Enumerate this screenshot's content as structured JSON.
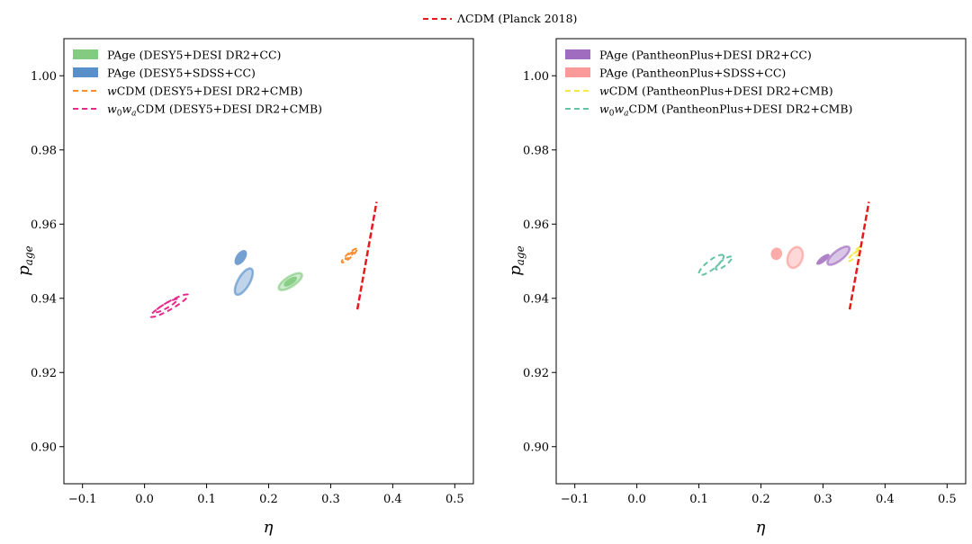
{
  "global_legend": {
    "label": "ΛCDM (Planck 2018)",
    "color": "#e41a1c",
    "style": "dashed"
  },
  "chart_data": [
    {
      "type": "contour",
      "xlabel": "η",
      "ylabel_main": "p",
      "ylabel_sub": "age",
      "xlim": [
        -0.13,
        0.53
      ],
      "ylim": [
        0.89,
        1.01
      ],
      "xticks": [
        -0.1,
        0.0,
        0.1,
        0.2,
        0.3,
        0.4,
        0.5
      ],
      "xtick_labels": [
        "−0.1",
        "0.0",
        "0.1",
        "0.2",
        "0.3",
        "0.4",
        "0.5"
      ],
      "yticks": [
        0.9,
        0.92,
        0.94,
        0.96,
        0.98,
        1.0
      ],
      "ytick_labels": [
        "0.90",
        "0.92",
        "0.94",
        "0.96",
        "0.98",
        "1.00"
      ],
      "legend_position": "upper-left",
      "series": [
        {
          "name": "PAge (DESY5+SDSS+CC)",
          "kind": "filled",
          "color": "#3d7cbf",
          "contours": [
            {
              "level": "outer",
              "center": [
                0.16,
                0.9445
              ],
              "a": 0.165,
              "b": 0.065,
              "angle_deg": 60
            },
            {
              "level": "inner",
              "center": [
                0.155,
                0.951
              ],
              "a": 0.095,
              "b": 0.052,
              "angle_deg": 55
            }
          ]
        },
        {
          "name": "PAge (DESY5+DESI DR2+CC)",
          "kind": "filled",
          "color": "#6cc26a",
          "contours": [
            {
              "level": "outer",
              "center": [
                0.235,
                0.9445
              ],
              "a": 0.15,
              "b": 0.055,
              "angle_deg": 33
            },
            {
              "level": "inner",
              "center": [
                0.235,
                0.9445
              ],
              "a": 0.085,
              "b": 0.035,
              "angle_deg": 33
            }
          ]
        },
        {
          "name": "wCDM (DESY5+DESI DR2+CMB)",
          "kind": "dashed",
          "color": "#ff8c2a",
          "contours": [
            {
              "level": "outer",
              "center": [
                0.33,
                0.9515
              ],
              "a": 0.11,
              "b": 0.025,
              "angle_deg": 42
            },
            {
              "level": "inner",
              "center": [
                0.33,
                0.9515
              ],
              "a": 0.055,
              "b": 0.013,
              "angle_deg": 42
            }
          ]
        },
        {
          "name": "w0waCDM (DESY5+DESI DR2+CMB)",
          "kind": "dashed",
          "color": "#e7298a",
          "contours": [
            {
              "level": "outer",
              "center": [
                0.04,
                0.938
              ],
              "a": 0.24,
              "b": 0.043,
              "angle_deg": 30
            },
            {
              "level": "inner",
              "center": [
                0.035,
                0.938
              ],
              "a": 0.14,
              "b": 0.026,
              "angle_deg": 30
            }
          ]
        },
        {
          "name": "ΛCDM (Planck 2018)",
          "kind": "segment",
          "color": "#e41a1c",
          "points": [
            [
              0.343,
              0.937
            ],
            [
              0.374,
              0.966
            ]
          ]
        }
      ],
      "legend_entries": [
        {
          "key": "desi_cc",
          "label": "PAge (DESY5+DESI DR2+CC)",
          "color": "#6cc26a",
          "kind": "patch"
        },
        {
          "key": "sdss_cc",
          "label": "PAge (DESY5+SDSS+CC)",
          "color": "#3d7cbf",
          "kind": "patch"
        },
        {
          "key": "wcdm",
          "prefix": "w",
          "label": "CDM (DESY5+DESI DR2+CMB)",
          "color": "#ff8c2a",
          "kind": "dash"
        },
        {
          "key": "w0wa",
          "prefix": "w0wa",
          "label": "CDM (DESY5+DESI DR2+CMB)",
          "color": "#e7298a",
          "kind": "dash"
        }
      ]
    },
    {
      "type": "contour",
      "xlabel": "η",
      "ylabel_main": "p",
      "ylabel_sub": "age",
      "xlim": [
        -0.13,
        0.53
      ],
      "ylim": [
        0.89,
        1.01
      ],
      "xticks": [
        -0.1,
        0.0,
        0.1,
        0.2,
        0.3,
        0.4,
        0.5
      ],
      "xtick_labels": [
        "−0.1",
        "0.0",
        "0.1",
        "0.2",
        "0.3",
        "0.4",
        "0.5"
      ],
      "yticks": [
        0.9,
        0.92,
        0.94,
        0.96,
        0.98,
        1.0
      ],
      "ytick_labels": [
        "0.90",
        "0.92",
        "0.94",
        "0.96",
        "0.98",
        "1.00"
      ],
      "legend_position": "upper-left",
      "series": [
        {
          "name": "PAge (PantheonPlus+SDSS+CC)",
          "kind": "filled",
          "color": "#f98a87",
          "contours": [
            {
              "level": "outer",
              "center": [
                0.255,
                0.951
              ],
              "a": 0.12,
              "b": 0.08,
              "angle_deg": 70
            },
            {
              "level": "inner",
              "center": [
                0.225,
                0.952
              ],
              "a": 0.069,
              "b": 0.062,
              "angle_deg": 75
            }
          ]
        },
        {
          "name": "PAge (PantheonPlus+DESI DR2+CC)",
          "kind": "filled",
          "color": "#8e52b4",
          "contours": [
            {
              "level": "outer",
              "center": [
                0.325,
                0.9515
              ],
              "a": 0.15,
              "b": 0.055,
              "angle_deg": 38
            },
            {
              "level": "inner",
              "center": [
                0.3,
                0.9505
              ],
              "a": 0.09,
              "b": 0.032,
              "angle_deg": 38
            }
          ]
        },
        {
          "name": "wCDM (PantheonPlus+DESI DR2+CMB)",
          "kind": "dashed",
          "color": "#f5e94a",
          "contours": [
            {
              "level": "outer",
              "center": [
                0.35,
                0.9515
              ],
              "a": 0.09,
              "b": 0.022,
              "angle_deg": 42
            },
            {
              "level": "inner",
              "center": [
                0.355,
                0.953
              ],
              "a": 0.05,
              "b": 0.011,
              "angle_deg": 42
            }
          ]
        },
        {
          "name": "w0waCDM (PantheonPlus+DESI DR2+CMB)",
          "kind": "dashed",
          "color": "#66c2a5",
          "contours": [
            {
              "level": "outer",
              "center": [
                0.12,
                0.949
              ],
              "a": 0.17,
              "b": 0.05,
              "angle_deg": 38
            },
            {
              "level": "inner",
              "center": [
                0.14,
                0.9495
              ],
              "a": 0.11,
              "b": 0.032,
              "angle_deg": 38
            }
          ]
        },
        {
          "name": "ΛCDM (Planck 2018)",
          "kind": "segment",
          "color": "#e41a1c",
          "points": [
            [
              0.343,
              0.937
            ],
            [
              0.374,
              0.966
            ]
          ]
        }
      ],
      "legend_entries": [
        {
          "key": "pp_desi_cc",
          "label": "PAge (PantheonPlus+DESI DR2+CC)",
          "color": "#8e52b4",
          "kind": "patch"
        },
        {
          "key": "pp_sdss_cc",
          "label": "PAge (PantheonPlus+SDSS+CC)",
          "color": "#f98a87",
          "kind": "patch"
        },
        {
          "key": "pp_wcdm",
          "prefix": "w",
          "label": "CDM (PantheonPlus+DESI DR2+CMB)",
          "color": "#f5e94a",
          "kind": "dash"
        },
        {
          "key": "pp_w0wa",
          "prefix": "w0wa",
          "label": "CDM (PantheonPlus+DESI DR2+CMB)",
          "color": "#66c2a5",
          "kind": "dash"
        }
      ]
    }
  ]
}
